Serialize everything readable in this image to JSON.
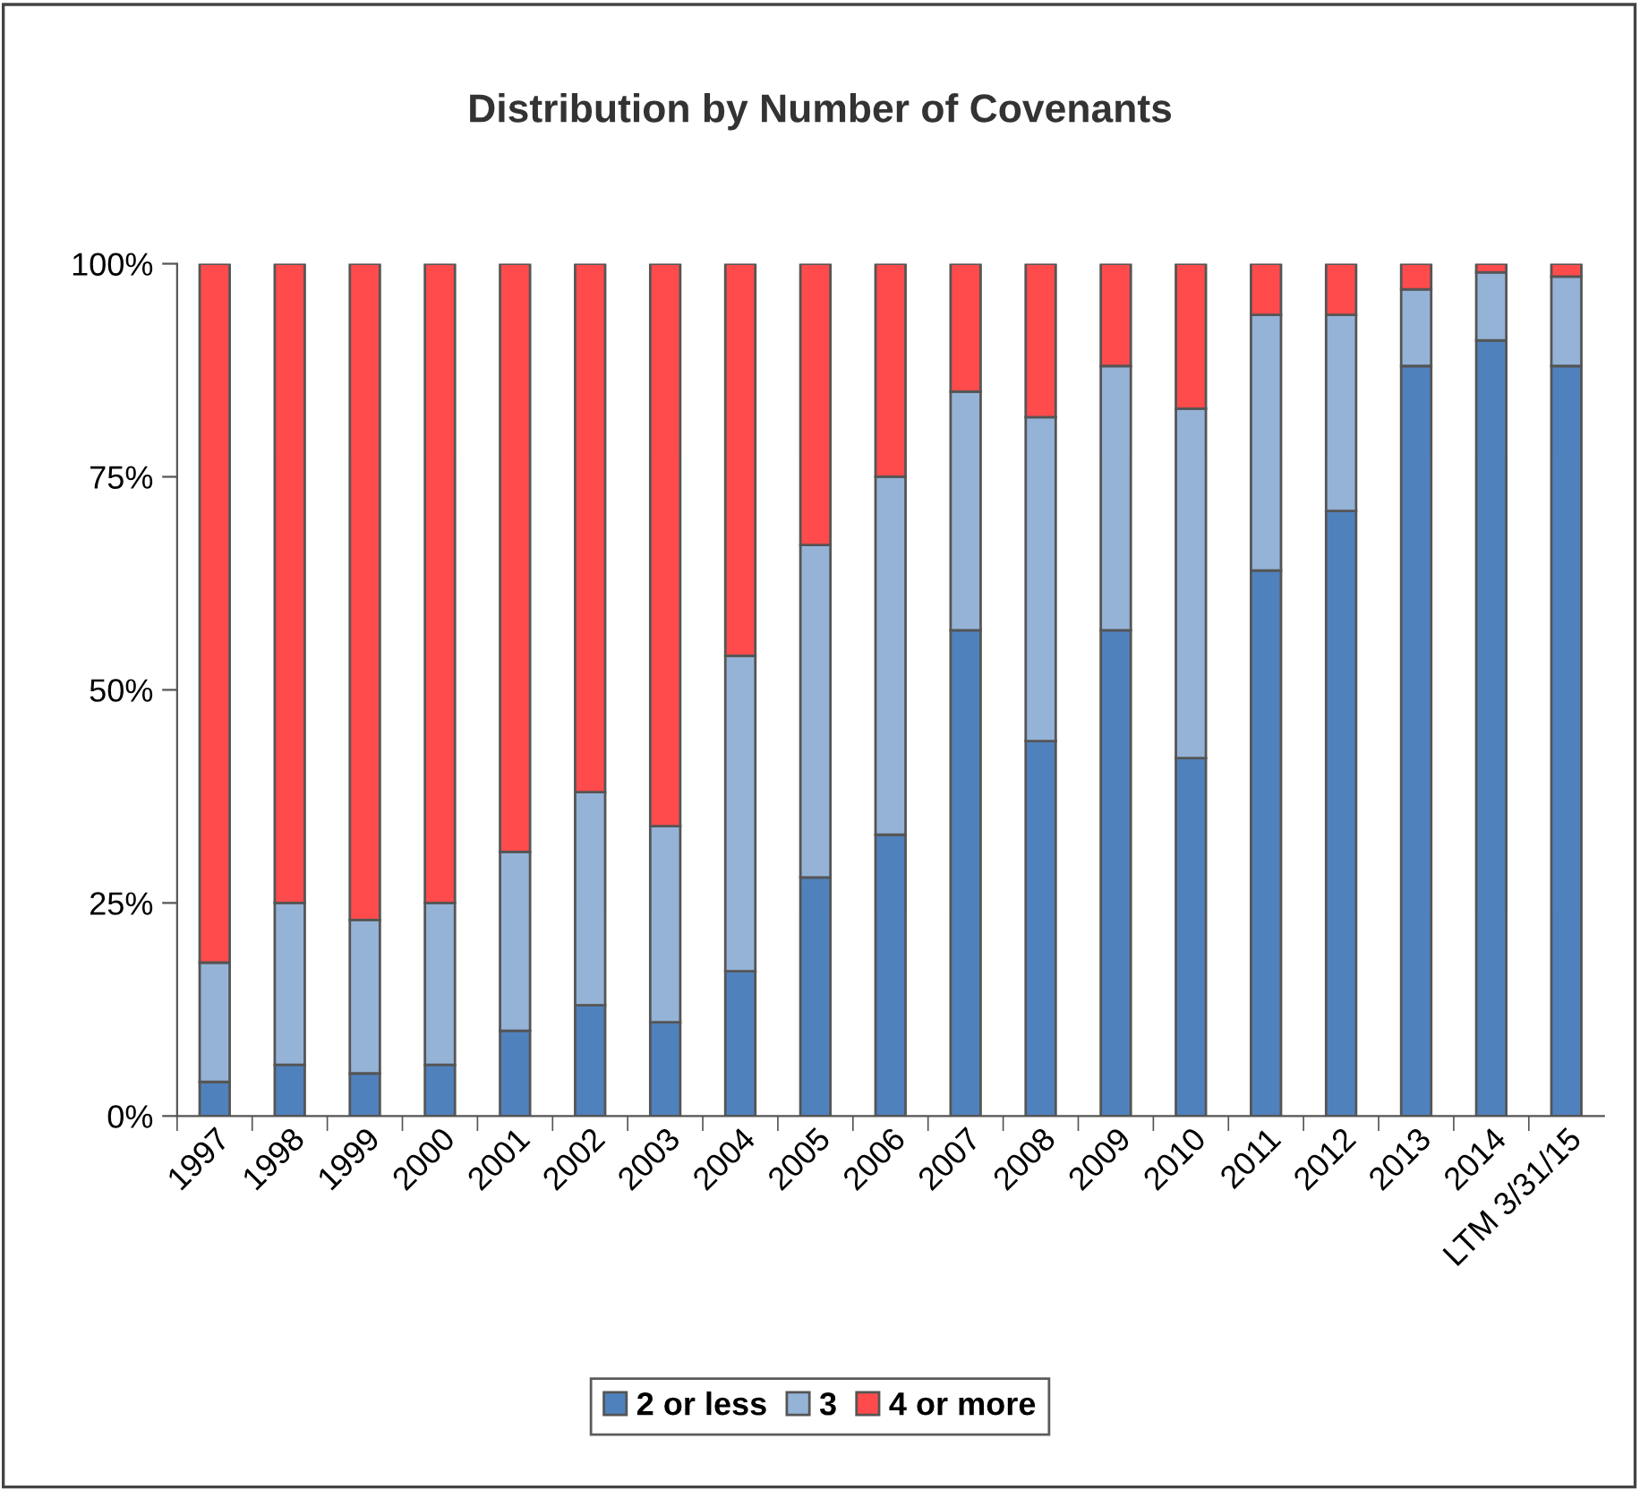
{
  "chart_data": {
    "type": "bar",
    "title": "Distribution by Number of Covenants",
    "categories": [
      "1997",
      "1998",
      "1999",
      "2000",
      "2001",
      "2002",
      "2003",
      "2004",
      "2005",
      "2006",
      "2007",
      "2008",
      "2009",
      "2010",
      "2011",
      "2012",
      "2013",
      "2014",
      "LTM 3/31/15"
    ],
    "stacked": true,
    "series": [
      {
        "name": "2 or less",
        "color": "#4f81bd",
        "values": [
          4,
          6,
          5,
          6,
          10,
          13,
          11,
          17,
          28,
          33,
          57,
          44,
          57,
          42,
          64,
          71,
          88,
          91,
          88
        ]
      },
      {
        "name": "3",
        "color": "#95b3d7",
        "values": [
          14,
          19,
          18,
          19,
          21,
          25,
          23,
          37,
          39,
          42,
          28,
          38,
          31,
          41,
          30,
          23,
          9,
          8,
          10.5
        ]
      },
      {
        "name": "4 or more",
        "color": "#ff4b4b",
        "values": [
          82,
          75,
          77,
          75,
          69,
          62,
          66,
          46,
          33,
          25,
          15,
          18,
          12,
          17,
          6,
          6,
          3,
          1,
          1.5
        ]
      }
    ],
    "ylim": [
      0,
      100
    ],
    "yticks": [
      {
        "value": 0,
        "label": "0%"
      },
      {
        "value": 25,
        "label": "25%"
      },
      {
        "value": 50,
        "label": "50%"
      },
      {
        "value": 75,
        "label": "75%"
      },
      {
        "value": 100,
        "label": "100%"
      }
    ],
    "grid": false,
    "legend": "bottom"
  }
}
